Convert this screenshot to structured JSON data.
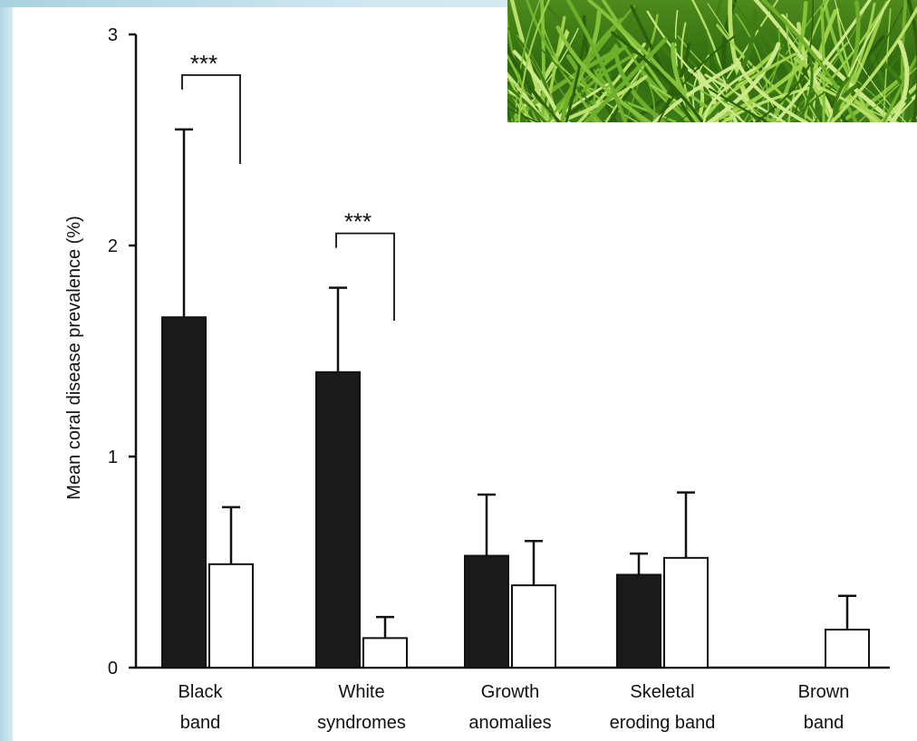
{
  "chart_data": {
    "type": "bar",
    "ylabel": "Mean coral disease prevalence (%)",
    "xlabel": "",
    "ylim": [
      0,
      3
    ],
    "yticks": [
      0,
      1,
      2,
      3
    ],
    "categories": [
      [
        "Black",
        "band"
      ],
      [
        "White",
        "syndromes"
      ],
      [
        "Growth",
        "anomalies"
      ],
      [
        "Skeletal",
        "eroding band"
      ],
      [
        "Brown",
        "band"
      ]
    ],
    "series": [
      {
        "color": "#1a1a1a",
        "values": [
          1.66,
          1.4,
          0.53,
          0.44,
          0
        ],
        "errors": [
          0.89,
          0.4,
          0.29,
          0.1,
          0
        ]
      },
      {
        "color": "#ffffff",
        "values": [
          0.49,
          0.14,
          0.39,
          0.52,
          0.18
        ],
        "errors": [
          0.27,
          0.1,
          0.21,
          0.31,
          0.16
        ]
      }
    ],
    "significance": [
      {
        "category_index": 0,
        "label": "***"
      },
      {
        "category_index": 1,
        "label": "***"
      }
    ],
    "grid": false,
    "legend": "none"
  },
  "photo": {
    "subject": "grass"
  }
}
